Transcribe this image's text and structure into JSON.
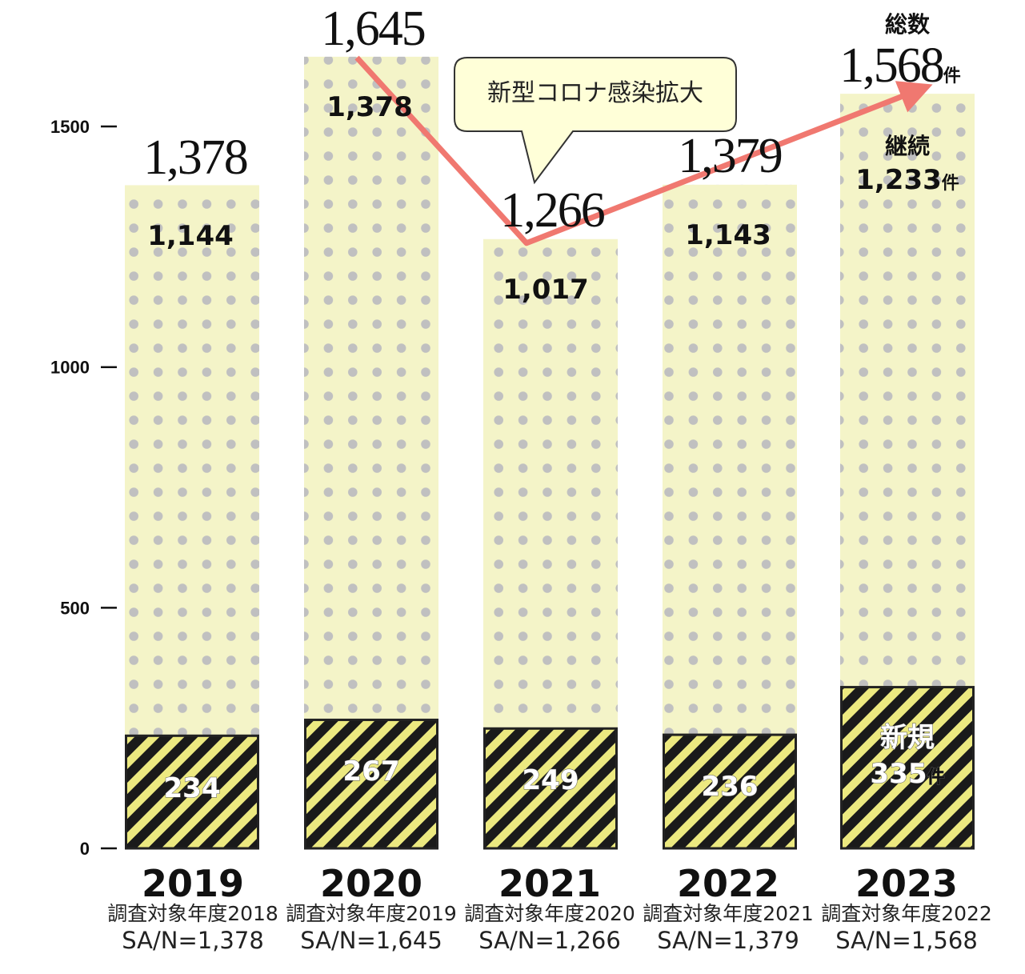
{
  "chart_data": {
    "type": "bar",
    "stacked": true,
    "categories": [
      "2019",
      "2020",
      "2021",
      "2022",
      "2023"
    ],
    "subtitles": [
      "調査対象年度2018",
      "調査対象年度2019",
      "調査対象年度2020",
      "調査対象年度2021",
      "調査対象年度2022"
    ],
    "sample_labels": [
      "SA/N=1,378",
      "SA/N=1,645",
      "SA/N=1,266",
      "SA/N=1,379",
      "SA/N=1,568"
    ],
    "series": [
      {
        "name": "新規",
        "values": [
          234,
          267,
          249,
          236,
          335
        ],
        "labels": [
          "234",
          "267",
          "249",
          "236",
          "335"
        ]
      },
      {
        "name": "継続",
        "values": [
          1144,
          1378,
          1017,
          1143,
          1233
        ],
        "labels": [
          "1,144",
          "1,378",
          "1,017",
          "1,143",
          "1,233"
        ]
      }
    ],
    "totals": [
      1378,
      1645,
      1266,
      1379,
      1568
    ],
    "total_labels": [
      "1,378",
      "1,645",
      "1,266",
      "1,379",
      "1,568"
    ],
    "ylim": [
      0,
      1500
    ],
    "yticks": [
      0,
      500,
      1000,
      1500
    ],
    "unit": "件",
    "total_series_name": "総数",
    "annotation": "新型コロナ感染拡大",
    "trend_arrow_color": "#f07870",
    "colors": {
      "continuing_fill": "#f4f4c8",
      "dot": "#c0c0c0",
      "stripe_dark": "#1a1a1a",
      "stripe_light": "#ece980",
      "callout_fill": "#ffffd8"
    }
  }
}
